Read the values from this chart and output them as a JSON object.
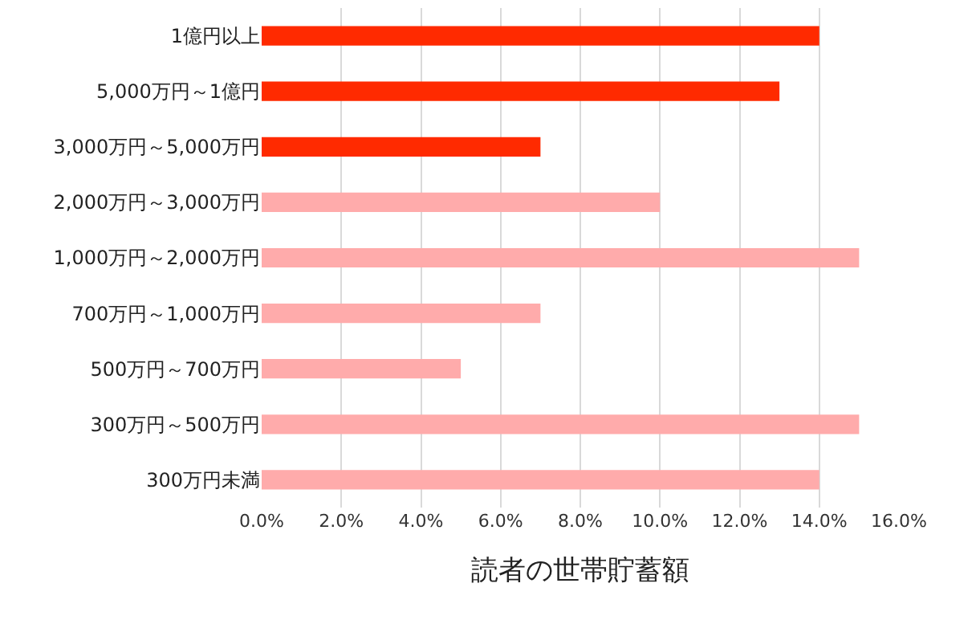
{
  "chart_data": {
    "type": "bar",
    "orientation": "horizontal",
    "xlabel": "読者の世帯貯蓄額",
    "categories": [
      "1億円以上",
      "5,000万円～1億円",
      "3,000万円～5,000万円",
      "2,000万円～3,000万円",
      "1,000万円～2,000万円",
      "700万円～1,000万円",
      "500万円～700万円",
      "300万円～500万円",
      "300万円未満"
    ],
    "values": [
      14,
      13,
      7,
      10,
      15,
      7,
      5,
      15,
      14
    ],
    "colors": [
      "#ff2a00",
      "#ff2a00",
      "#ff2a00",
      "#ffabab",
      "#ffabab",
      "#ffabab",
      "#ffabab",
      "#ffabab",
      "#ffabab"
    ],
    "xlim": [
      0,
      16
    ],
    "xticks": [
      {
        "value": 0,
        "label": "0.0%"
      },
      {
        "value": 2,
        "label": "2.0%"
      },
      {
        "value": 4,
        "label": "4.0%"
      },
      {
        "value": 6,
        "label": "6.0%"
      },
      {
        "value": 8,
        "label": "8.0%"
      },
      {
        "value": 10,
        "label": "10.0%"
      },
      {
        "value": 12,
        "label": "12.0%"
      },
      {
        "value": 14,
        "label": "14.0%"
      },
      {
        "value": 16,
        "label": "16.0%"
      }
    ],
    "grid": "x",
    "legend": false
  }
}
